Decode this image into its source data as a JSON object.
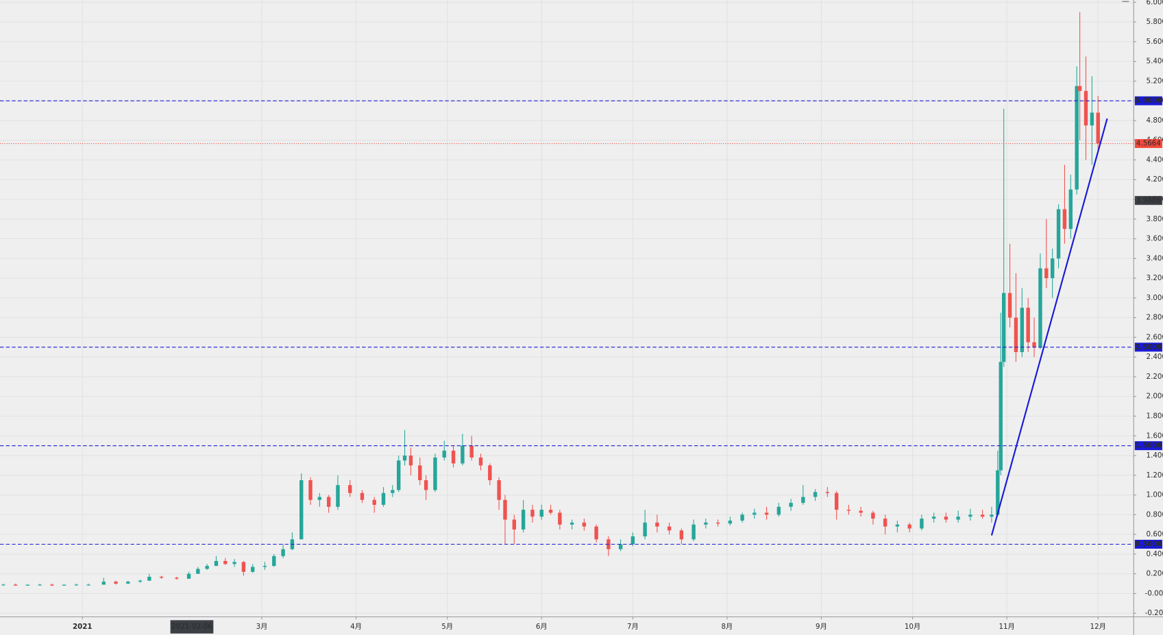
{
  "chart_data": {
    "type": "candlestick",
    "up_color": "#26a69a",
    "down_color": "#ef5350",
    "grid": true,
    "xlim": [
      -27.1,
      345.6
    ],
    "ylim": [
      -0.233,
      6.023
    ],
    "xticks": [
      {
        "value": 0,
        "label": "2021"
      },
      {
        "value": 59,
        "label": "3月"
      },
      {
        "value": 90,
        "label": "4月"
      },
      {
        "value": 120,
        "label": "5月"
      },
      {
        "value": 151,
        "label": "6月"
      },
      {
        "value": 181,
        "label": "7月"
      },
      {
        "value": 212,
        "label": "8月"
      },
      {
        "value": 243,
        "label": "9月"
      },
      {
        "value": 273,
        "label": "10月"
      },
      {
        "value": 304,
        "label": "11月"
      },
      {
        "value": 334,
        "label": "12月"
      }
    ],
    "crosshair_x": {
      "value": 36,
      "label": "2021-02-06"
    },
    "yticks": [
      {
        "value": -0.2,
        "label": "-0.2000"
      },
      {
        "value": 0,
        "label": "-0.0000"
      },
      {
        "value": 0.2,
        "label": "0.2000"
      },
      {
        "value": 0.4,
        "label": "0.4000"
      },
      {
        "value": 0.6,
        "label": "0.6000"
      },
      {
        "value": 0.8,
        "label": "0.8000"
      },
      {
        "value": 1.0,
        "label": "1.0000"
      },
      {
        "value": 1.2,
        "label": "1.2000"
      },
      {
        "value": 1.4,
        "label": "1.4000"
      },
      {
        "value": 1.6,
        "label": "1.6000"
      },
      {
        "value": 1.8,
        "label": "1.8000"
      },
      {
        "value": 2.0,
        "label": "2.0000"
      },
      {
        "value": 2.2,
        "label": "2.2000"
      },
      {
        "value": 2.4,
        "label": "2.4000"
      },
      {
        "value": 2.6,
        "label": "2.6000"
      },
      {
        "value": 2.8,
        "label": "2.8000"
      },
      {
        "value": 3.0,
        "label": "3.0000"
      },
      {
        "value": 3.2,
        "label": "3.2000"
      },
      {
        "value": 3.4,
        "label": "3.4000"
      },
      {
        "value": 3.6,
        "label": "3.6000"
      },
      {
        "value": 3.8,
        "label": "3.8000"
      },
      {
        "value": 4.0,
        "label": "4.0000"
      },
      {
        "value": 4.2,
        "label": "4.2000"
      },
      {
        "value": 4.4,
        "label": "4.4000"
      },
      {
        "value": 4.6,
        "label": "4.6000"
      },
      {
        "value": 4.8,
        "label": "4.8000"
      },
      {
        "value": 5.0,
        "label": "5.0000"
      },
      {
        "value": 5.2,
        "label": "5.2000"
      },
      {
        "value": 5.4,
        "label": "5.4000"
      },
      {
        "value": 5.6,
        "label": "5.6000"
      },
      {
        "value": 5.8,
        "label": "5.8000"
      },
      {
        "value": 6.0,
        "label": "6.0000"
      }
    ],
    "x": [
      -26,
      -22,
      -18,
      -14,
      -10,
      -6,
      -2,
      2,
      7,
      11,
      15,
      19,
      22,
      26,
      31,
      35,
      38,
      41,
      44,
      47,
      50,
      53,
      56,
      60,
      63,
      66,
      69,
      72,
      75,
      78,
      81,
      84,
      88,
      92,
      96,
      99,
      102,
      104,
      106,
      108,
      111,
      113,
      116,
      119,
      122,
      125,
      128,
      131,
      134,
      137,
      139,
      142,
      145,
      148,
      151,
      154,
      157,
      161,
      165,
      169,
      173,
      177,
      181,
      185,
      189,
      193,
      197,
      201,
      205,
      209,
      213,
      217,
      221,
      225,
      229,
      233,
      237,
      241,
      245,
      248,
      252,
      256,
      260,
      264,
      268,
      272,
      276,
      280,
      284,
      288,
      292,
      296,
      299,
      301,
      302,
      303,
      305,
      307,
      309,
      311,
      313,
      315,
      317,
      319,
      321,
      323,
      325,
      327,
      328,
      330,
      332,
      334
    ],
    "open": [
      0.09,
      0.09,
      0.08,
      0.09,
      0.09,
      0.08,
      0.09,
      0.09,
      0.09,
      0.12,
      0.1,
      0.12,
      0.13,
      0.17,
      0.16,
      0.15,
      0.2,
      0.25,
      0.28,
      0.33,
      0.3,
      0.32,
      0.22,
      0.27,
      0.28,
      0.38,
      0.45,
      0.55,
      1.15,
      0.95,
      0.98,
      0.88,
      1.1,
      1.02,
      0.95,
      0.9,
      1.02,
      1.05,
      1.35,
      1.4,
      1.3,
      1.15,
      1.05,
      1.38,
      1.45,
      1.32,
      1.5,
      1.38,
      1.3,
      1.15,
      0.95,
      0.75,
      0.65,
      0.85,
      0.78,
      0.85,
      0.82,
      0.7,
      0.72,
      0.68,
      0.55,
      0.45,
      0.5,
      0.58,
      0.72,
      0.68,
      0.64,
      0.55,
      0.7,
      0.72,
      0.71,
      0.74,
      0.8,
      0.82,
      0.8,
      0.88,
      0.92,
      0.98,
      1.03,
      1.02,
      0.85,
      0.84,
      0.82,
      0.76,
      0.68,
      0.7,
      0.66,
      0.76,
      0.78,
      0.75,
      0.78,
      0.8,
      0.78,
      0.8,
      1.25,
      2.35,
      3.05,
      2.8,
      2.45,
      2.9,
      2.55,
      2.5,
      3.3,
      3.2,
      3.4,
      3.9,
      3.7,
      4.1,
      5.15,
      5.1,
      4.75,
      4.88
    ],
    "high": [
      0.1,
      0.1,
      0.09,
      0.1,
      0.1,
      0.09,
      0.1,
      0.1,
      0.16,
      0.13,
      0.13,
      0.14,
      0.2,
      0.18,
      0.17,
      0.22,
      0.27,
      0.3,
      0.38,
      0.36,
      0.35,
      0.33,
      0.3,
      0.32,
      0.4,
      0.5,
      0.62,
      1.22,
      1.18,
      1.02,
      1.0,
      1.2,
      1.15,
      1.05,
      0.98,
      1.08,
      1.1,
      1.4,
      1.66,
      1.48,
      1.38,
      1.2,
      1.42,
      1.55,
      1.5,
      1.62,
      1.6,
      1.42,
      1.32,
      1.18,
      1.0,
      0.8,
      0.95,
      0.9,
      0.9,
      0.9,
      0.85,
      0.75,
      0.76,
      0.7,
      0.58,
      0.55,
      0.62,
      0.85,
      0.8,
      0.72,
      0.66,
      0.75,
      0.76,
      0.75,
      0.78,
      0.82,
      0.86,
      0.88,
      0.92,
      0.96,
      1.1,
      1.06,
      1.08,
      1.04,
      0.9,
      0.88,
      0.84,
      0.8,
      0.74,
      0.72,
      0.8,
      0.82,
      0.82,
      0.84,
      0.86,
      0.85,
      0.88,
      1.45,
      2.85,
      4.92,
      3.55,
      3.25,
      3.1,
      3.0,
      2.8,
      3.45,
      3.8,
      3.5,
      3.95,
      4.35,
      4.25,
      5.35,
      5.9,
      5.45,
      5.25,
      5.05
    ],
    "low": [
      0.08,
      0.08,
      0.08,
      0.08,
      0.08,
      0.08,
      0.08,
      0.08,
      0.09,
      0.09,
      0.1,
      0.11,
      0.13,
      0.15,
      0.14,
      0.15,
      0.2,
      0.24,
      0.28,
      0.29,
      0.27,
      0.18,
      0.21,
      0.24,
      0.27,
      0.36,
      0.44,
      0.55,
      0.9,
      0.88,
      0.82,
      0.85,
      0.98,
      0.92,
      0.82,
      0.88,
      0.98,
      1.03,
      1.3,
      1.2,
      1.1,
      0.95,
      1.03,
      1.35,
      1.28,
      1.3,
      1.35,
      1.25,
      1.1,
      0.85,
      0.5,
      0.5,
      0.62,
      0.72,
      0.75,
      0.8,
      0.65,
      0.65,
      0.64,
      0.52,
      0.38,
      0.43,
      0.48,
      0.55,
      0.62,
      0.6,
      0.5,
      0.53,
      0.66,
      0.68,
      0.69,
      0.72,
      0.76,
      0.75,
      0.78,
      0.84,
      0.9,
      0.94,
      0.98,
      0.75,
      0.8,
      0.78,
      0.7,
      0.6,
      0.62,
      0.62,
      0.64,
      0.72,
      0.72,
      0.72,
      0.74,
      0.76,
      0.72,
      0.78,
      1.2,
      2.3,
      2.7,
      2.35,
      2.4,
      2.45,
      2.4,
      2.48,
      3.1,
      3.0,
      3.3,
      3.55,
      3.6,
      4.05,
      4.6,
      4.4,
      4.35,
      4.5
    ],
    "close": [
      0.09,
      0.08,
      0.09,
      0.09,
      0.08,
      0.09,
      0.09,
      0.09,
      0.12,
      0.1,
      0.12,
      0.13,
      0.17,
      0.16,
      0.15,
      0.2,
      0.25,
      0.28,
      0.33,
      0.3,
      0.32,
      0.22,
      0.27,
      0.28,
      0.38,
      0.45,
      0.55,
      1.15,
      0.95,
      0.98,
      0.88,
      1.1,
      1.02,
      0.95,
      0.9,
      1.02,
      1.05,
      1.35,
      1.4,
      1.3,
      1.15,
      1.05,
      1.38,
      1.45,
      1.32,
      1.5,
      1.38,
      1.3,
      1.15,
      0.95,
      0.75,
      0.65,
      0.85,
      0.78,
      0.85,
      0.82,
      0.7,
      0.72,
      0.68,
      0.55,
      0.45,
      0.5,
      0.58,
      0.72,
      0.68,
      0.64,
      0.55,
      0.7,
      0.72,
      0.71,
      0.74,
      0.8,
      0.82,
      0.8,
      0.88,
      0.92,
      0.98,
      1.03,
      1.02,
      0.85,
      0.84,
      0.82,
      0.76,
      0.68,
      0.7,
      0.66,
      0.76,
      0.78,
      0.75,
      0.78,
      0.8,
      0.78,
      0.8,
      1.25,
      2.35,
      3.05,
      2.8,
      2.45,
      2.9,
      2.55,
      2.5,
      3.3,
      3.2,
      3.4,
      3.9,
      3.7,
      4.1,
      5.15,
      5.1,
      4.75,
      4.88,
      4.5664
    ],
    "price_lines": [
      {
        "value": 5.0,
        "label": "5.0000"
      },
      {
        "value": 2.5,
        "label": "2.5000"
      },
      {
        "value": 1.5,
        "label": "1.5000"
      },
      {
        "value": 0.5,
        "label": "0.5000"
      }
    ],
    "price_line_color": "#1a1ad6",
    "last_price": {
      "value": 4.5664,
      "label": "4.5664",
      "color": "#f04a3e"
    },
    "marker_price": {
      "value": 3.9886,
      "label": "3.9886",
      "color": "#3c3f44"
    },
    "trendline": {
      "x": [
        299,
        337
      ],
      "y": [
        0.59,
        4.82
      ],
      "color": "#1a1ad6"
    }
  }
}
